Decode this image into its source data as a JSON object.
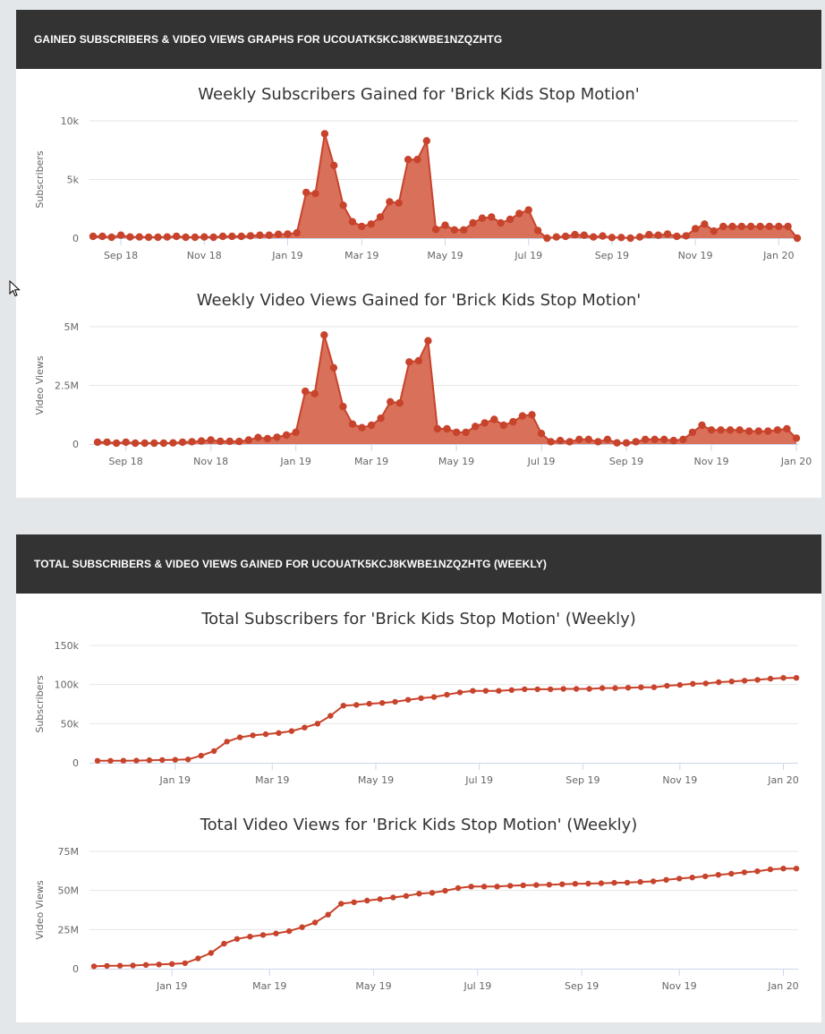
{
  "panels": [
    {
      "header": "GAINED SUBSCRIBERS & VIDEO VIEWS GRAPHS FOR UCOUATK5KCJ8KWBE1NZQZHTG"
    },
    {
      "header": "TOTAL SUBSCRIBERS & VIDEO VIEWS GAINED FOR UCOUATK5KCJ8KWBE1NZQZHTG (WEEKLY)"
    }
  ],
  "colors": {
    "series": "#c8432b",
    "area_fill": "#d9705a",
    "header_bg": "#333333",
    "page_bg": "#e4e7ea"
  },
  "chart_data": [
    {
      "type": "area",
      "title": "Weekly Subscribers Gained for 'Brick Kids Stop Motion'",
      "xlabel": "",
      "ylabel": "Subscribers",
      "ylim": [
        0,
        10000
      ],
      "yticks": [
        0,
        5000,
        10000
      ],
      "ytick_labels": [
        "0",
        "5k",
        "10k"
      ],
      "xtick_labels": [
        "Sep 18",
        "Nov 18",
        "Jan 19",
        "Mar 19",
        "May 19",
        "Jul 19",
        "Sep 19",
        "Nov 19",
        "Jan 20"
      ],
      "xtick_positions": [
        3,
        12,
        21,
        29,
        38,
        47,
        56,
        65,
        74
      ],
      "grid": true,
      "legend": "none",
      "values": [
        150,
        150,
        80,
        250,
        100,
        100,
        80,
        80,
        100,
        150,
        80,
        80,
        100,
        80,
        150,
        150,
        150,
        200,
        250,
        250,
        330,
        350,
        450,
        3900,
        3800,
        8900,
        6200,
        2800,
        1400,
        1000,
        1200,
        1800,
        3100,
        3000,
        6700,
        6700,
        8300,
        750,
        1100,
        700,
        700,
        1300,
        1700,
        1800,
        1300,
        1600,
        2100,
        2400,
        650,
        0,
        100,
        150,
        300,
        250,
        100,
        180,
        50,
        50,
        0,
        100,
        300,
        250,
        350,
        150,
        200,
        800,
        1200,
        600,
        1000,
        1000,
        1000,
        1000,
        1000,
        1000,
        1000,
        1000,
        0
      ]
    },
    {
      "type": "area",
      "title": "Weekly Video Views Gained for 'Brick Kids Stop Motion'",
      "xlabel": "",
      "ylabel": "Video Views",
      "ylim": [
        0,
        5000000
      ],
      "yticks": [
        0,
        2500000,
        5000000
      ],
      "ytick_labels": [
        "0",
        "2.5M",
        "5M"
      ],
      "xtick_labels": [
        "Sep 18",
        "Nov 18",
        "Jan 19",
        "Mar 19",
        "May 19",
        "Jul 19",
        "Sep 19",
        "Nov 19",
        "Jan 20"
      ],
      "xtick_positions": [
        3,
        12,
        21,
        29,
        38,
        47,
        56,
        65,
        74
      ],
      "grid": true,
      "legend": "none",
      "values": [
        80000,
        80000,
        40000,
        80000,
        40000,
        40000,
        40000,
        40000,
        50000,
        80000,
        100000,
        130000,
        170000,
        120000,
        120000,
        110000,
        170000,
        280000,
        230000,
        290000,
        380000,
        500000,
        2250000,
        2150000,
        4650000,
        3250000,
        1600000,
        850000,
        700000,
        800000,
        1100000,
        1800000,
        1750000,
        3500000,
        3550000,
        4400000,
        650000,
        650000,
        500000,
        500000,
        750000,
        900000,
        1050000,
        800000,
        950000,
        1200000,
        1250000,
        450000,
        100000,
        150000,
        100000,
        200000,
        200000,
        100000,
        200000,
        50000,
        50000,
        100000,
        200000,
        200000,
        200000,
        150000,
        200000,
        500000,
        800000,
        600000,
        600000,
        600000,
        600000,
        550000,
        550000,
        550000,
        600000,
        650000,
        250000
      ]
    },
    {
      "type": "line",
      "title": "Total Subscribers for 'Brick Kids Stop Motion' (Weekly)",
      "xlabel": "",
      "ylabel": "Subscribers",
      "ylim": [
        0,
        150000
      ],
      "yticks": [
        0,
        50000,
        100000,
        150000
      ],
      "ytick_labels": [
        "0",
        "50k",
        "100k",
        "150k"
      ],
      "xtick_labels": [
        "Jan 19",
        "Mar 19",
        "May 19",
        "Jul 19",
        "Sep 19",
        "Nov 19",
        "Jan 20"
      ],
      "xtick_positions": [
        6,
        13.5,
        21.5,
        29.5,
        37.5,
        45,
        53
      ],
      "grid": true,
      "legend": "none",
      "values": [
        2500,
        2500,
        2600,
        2800,
        3200,
        3500,
        3800,
        4200,
        9000,
        15000,
        27000,
        32500,
        35000,
        36500,
        38000,
        40500,
        45000,
        50000,
        60000,
        73000,
        74000,
        75500,
        76500,
        78000,
        80500,
        82500,
        84000,
        87000,
        90000,
        92000,
        92000,
        92000,
        93000,
        94000,
        94000,
        94000,
        94500,
        94500,
        94500,
        95500,
        95500,
        96000,
        96500,
        96500,
        98500,
        99500,
        101000,
        101500,
        103000,
        104000,
        105000,
        106000,
        107500,
        108500,
        108500
      ]
    },
    {
      "type": "line",
      "title": "Total Video Views for 'Brick Kids Stop Motion' (Weekly)",
      "xlabel": "",
      "ylabel": "Video Views",
      "ylim": [
        0,
        75000000
      ],
      "yticks": [
        0,
        25000000,
        50000000,
        75000000
      ],
      "ytick_labels": [
        "0",
        "25M",
        "50M",
        "75M"
      ],
      "xtick_labels": [
        "Jan 19",
        "Mar 19",
        "May 19",
        "Jul 19",
        "Sep 19",
        "Nov 19",
        "Jan 20"
      ],
      "xtick_positions": [
        6,
        13.5,
        21.5,
        29.5,
        37.5,
        45,
        53
      ],
      "grid": true,
      "legend": "none",
      "values": [
        1500000,
        1800000,
        1900000,
        2000000,
        2400000,
        2700000,
        3000000,
        3500000,
        6500000,
        10000000,
        16000000,
        19000000,
        20500000,
        21500000,
        22500000,
        24000000,
        26500000,
        29500000,
        34500000,
        41500000,
        42500000,
        43500000,
        44500000,
        45500000,
        46500000,
        48000000,
        48500000,
        49800000,
        51500000,
        52500000,
        52500000,
        52500000,
        53000000,
        53300000,
        53500000,
        53700000,
        54000000,
        54300000,
        54400000,
        54600000,
        54900000,
        55000000,
        55500000,
        55800000,
        56800000,
        57600000,
        58300000,
        59000000,
        60000000,
        60700000,
        61600000,
        62300000,
        63500000,
        64000000,
        64000000
      ]
    }
  ]
}
